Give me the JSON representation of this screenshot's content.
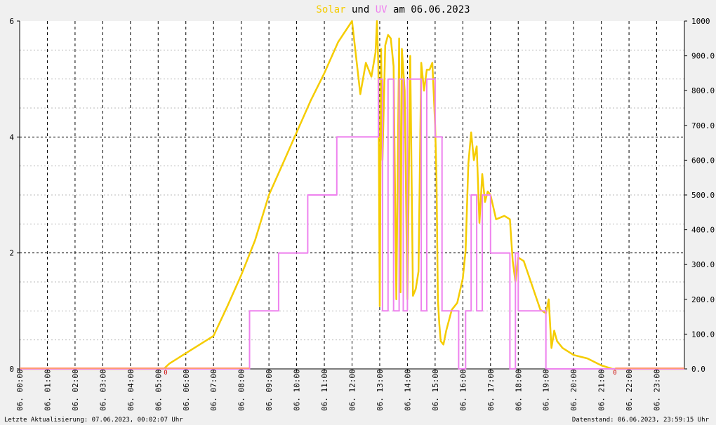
{
  "title": {
    "solar": "Solar",
    "und": "und",
    "uv": "UV",
    "am": "am 06.06.2023"
  },
  "footer": {
    "left": "Letzte Aktualisierung: 07.06.2023, 00:02:07 Uhr",
    "right": "Datenstand: 06.06.2023, 23:59:15 Uhr"
  },
  "markers": {
    "zero_left": "0",
    "zero_right": "0"
  },
  "chart_data": {
    "type": "line",
    "x_ticks": [
      "06. 00:00",
      "06. 01:00",
      "06. 02:00",
      "06. 03:00",
      "06. 04:00",
      "06. 05:00",
      "06. 06:00",
      "06. 07:00",
      "06. 08:00",
      "06. 09:00",
      "06. 10:00",
      "06. 11:00",
      "06. 12:00",
      "06. 13:00",
      "06. 14:00",
      "06. 15:00",
      "06. 16:00",
      "06. 17:00",
      "06. 18:00",
      "06. 19:00",
      "06. 20:00",
      "06. 21:00",
      "06. 22:00",
      "06. 23:00"
    ],
    "y_left_ticks": [
      "0",
      "2",
      "4",
      "6"
    ],
    "y_right_ticks": [
      "0.0",
      "100.0",
      "200.0",
      "300.0",
      "400.0",
      "500.0",
      "600.0",
      "700.0",
      "800.0",
      "900.0",
      "1000"
    ],
    "ylim_left": [
      0,
      6
    ],
    "ylim_right": [
      0,
      1000
    ],
    "xlim_hours": [
      0,
      24
    ],
    "colors": {
      "solar": "#f5cc00",
      "uv": "#ee82ee",
      "overlap": "#ff9a76",
      "marker": "#cc0000"
    },
    "series": [
      {
        "name": "Solar",
        "axis": "right",
        "x": [
          0,
          5.2,
          5.4,
          5.8,
          6.5,
          7.0,
          7.5,
          8.0,
          8.5,
          9.0,
          9.5,
          10.0,
          10.5,
          11.0,
          11.5,
          12.0,
          12.3,
          12.5,
          12.7,
          12.85,
          12.9,
          12.95,
          13.0,
          13.05,
          13.1,
          13.2,
          13.3,
          13.4,
          13.5,
          13.6,
          13.7,
          13.75,
          13.8,
          13.9,
          14.0,
          14.1,
          14.2,
          14.3,
          14.4,
          14.5,
          14.6,
          14.7,
          14.8,
          14.9,
          15.0,
          15.05,
          15.1,
          15.15,
          15.2,
          15.3,
          15.4,
          15.6,
          15.8,
          16.0,
          16.1,
          16.2,
          16.3,
          16.4,
          16.5,
          16.6,
          16.7,
          16.8,
          16.9,
          17.0,
          17.2,
          17.5,
          17.7,
          17.8,
          17.9,
          18.0,
          18.2,
          18.5,
          18.8,
          19.0,
          19.1,
          19.2,
          19.3,
          19.4,
          19.6,
          20.0,
          20.5,
          21.0,
          21.4,
          21.5,
          24.0
        ],
        "y": [
          0,
          0,
          15,
          35,
          70,
          95,
          180,
          270,
          370,
          500,
          590,
          680,
          770,
          850,
          940,
          1000,
          790,
          880,
          840,
          910,
          1000,
          870,
          180,
          920,
          600,
          930,
          960,
          950,
          870,
          200,
          950,
          220,
          920,
          800,
          200,
          900,
          210,
          230,
          280,
          880,
          800,
          860,
          860,
          880,
          700,
          550,
          200,
          130,
          80,
          70,
          110,
          170,
          190,
          260,
          340,
          590,
          680,
          600,
          640,
          420,
          560,
          480,
          510,
          500,
          430,
          440,
          430,
          310,
          250,
          320,
          310,
          240,
          170,
          160,
          200,
          60,
          110,
          80,
          60,
          40,
          30,
          10,
          0,
          0,
          0
        ]
      },
      {
        "name": "UV",
        "axis": "left",
        "x": [
          0,
          8.3,
          8.3,
          9.35,
          9.35,
          10.4,
          10.4,
          11.45,
          11.45,
          12.95,
          12.95,
          13.1,
          13.1,
          13.3,
          13.3,
          13.5,
          13.5,
          13.7,
          13.7,
          13.85,
          13.85,
          14.0,
          14.0,
          14.5,
          14.5,
          14.7,
          14.7,
          15.0,
          15.0,
          15.25,
          15.25,
          15.85,
          15.85,
          16.1,
          16.1,
          16.3,
          16.3,
          16.5,
          16.5,
          16.7,
          16.7,
          17.0,
          17.0,
          17.7,
          17.7,
          17.9,
          17.9,
          18.0,
          18.0,
          19.0,
          19.0,
          24.0
        ],
        "y": [
          0,
          0,
          1,
          1,
          2,
          2,
          3,
          3,
          4,
          4,
          5,
          5,
          1,
          1,
          5,
          5,
          1,
          1,
          5,
          5,
          1,
          1,
          5,
          5,
          1,
          1,
          5,
          5,
          4,
          4,
          1,
          1,
          0,
          0,
          1,
          1,
          3,
          3,
          1,
          1,
          3,
          3,
          2,
          2,
          0,
          0,
          2,
          2,
          1,
          1,
          0,
          0
        ]
      }
    ]
  }
}
